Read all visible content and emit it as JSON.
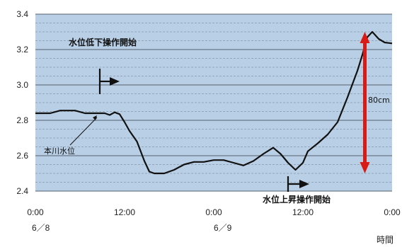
{
  "chart_data": {
    "type": "line",
    "title": "",
    "xlabel": "",
    "ylabel": "",
    "ylim": [
      2.4,
      3.4
    ],
    "y_ticks": [
      "2.4",
      "2.6",
      "2.8",
      "3.0",
      "3.2",
      "3.4"
    ],
    "x_ticks": [
      "0:00",
      "12:00",
      "0:00",
      "12:00",
      "0:00"
    ],
    "x_unit": "hours",
    "date_labels": [
      {
        "text": "6／8",
        "at_hour": 0
      },
      {
        "text": "6／9",
        "at_hour": 24
      }
    ],
    "x_axis_title_fragment": "時間",
    "grid": true,
    "series": [
      {
        "name": "本川水位",
        "points": [
          [
            0,
            2.84
          ],
          [
            3,
            2.84
          ],
          [
            5,
            2.855
          ],
          [
            8,
            2.855
          ],
          [
            10,
            2.84
          ],
          [
            14,
            2.84
          ],
          [
            15,
            2.83
          ],
          [
            16,
            2.845
          ],
          [
            17,
            2.835
          ],
          [
            18,
            2.79
          ],
          [
            19,
            2.74
          ],
          [
            20.5,
            2.68
          ],
          [
            22,
            2.57
          ],
          [
            23,
            2.51
          ],
          [
            24,
            2.5
          ],
          [
            26,
            2.5
          ],
          [
            28,
            2.52
          ],
          [
            30,
            2.55
          ],
          [
            32,
            2.565
          ],
          [
            34,
            2.565
          ],
          [
            36,
            2.575
          ],
          [
            38,
            2.575
          ],
          [
            40,
            2.56
          ],
          [
            42,
            2.545
          ],
          [
            44,
            2.57
          ],
          [
            46,
            2.61
          ],
          [
            48,
            2.645
          ],
          [
            49.5,
            2.61
          ],
          [
            51,
            2.56
          ],
          [
            52.5,
            2.52
          ],
          [
            54,
            2.56
          ],
          [
            55,
            2.625
          ],
          [
            57,
            2.67
          ],
          [
            59,
            2.72
          ],
          [
            61,
            2.79
          ],
          [
            63,
            2.93
          ],
          [
            65,
            3.08
          ],
          [
            66,
            3.17
          ],
          [
            67,
            3.27
          ],
          [
            68,
            3.3
          ],
          [
            69.3,
            3.26
          ],
          [
            70.5,
            3.24
          ],
          [
            72,
            3.235
          ]
        ]
      }
    ],
    "annotations": [
      {
        "text": "水位低下操作開始",
        "marker_hour": 13,
        "marker_level": 3.02
      },
      {
        "text": "水位上昇操作開始",
        "marker_hour": 51,
        "marker_level": 2.44
      },
      {
        "text": "80cm",
        "from_level": 2.5,
        "to_level": 3.3,
        "at_hour": 66.5
      },
      {
        "text": "本川水位"
      }
    ]
  },
  "colors": {
    "plot_bg": "#b8cfe6",
    "grid": "#6f7d8c",
    "line": "#111111",
    "arrow_red": "#d81b14"
  }
}
